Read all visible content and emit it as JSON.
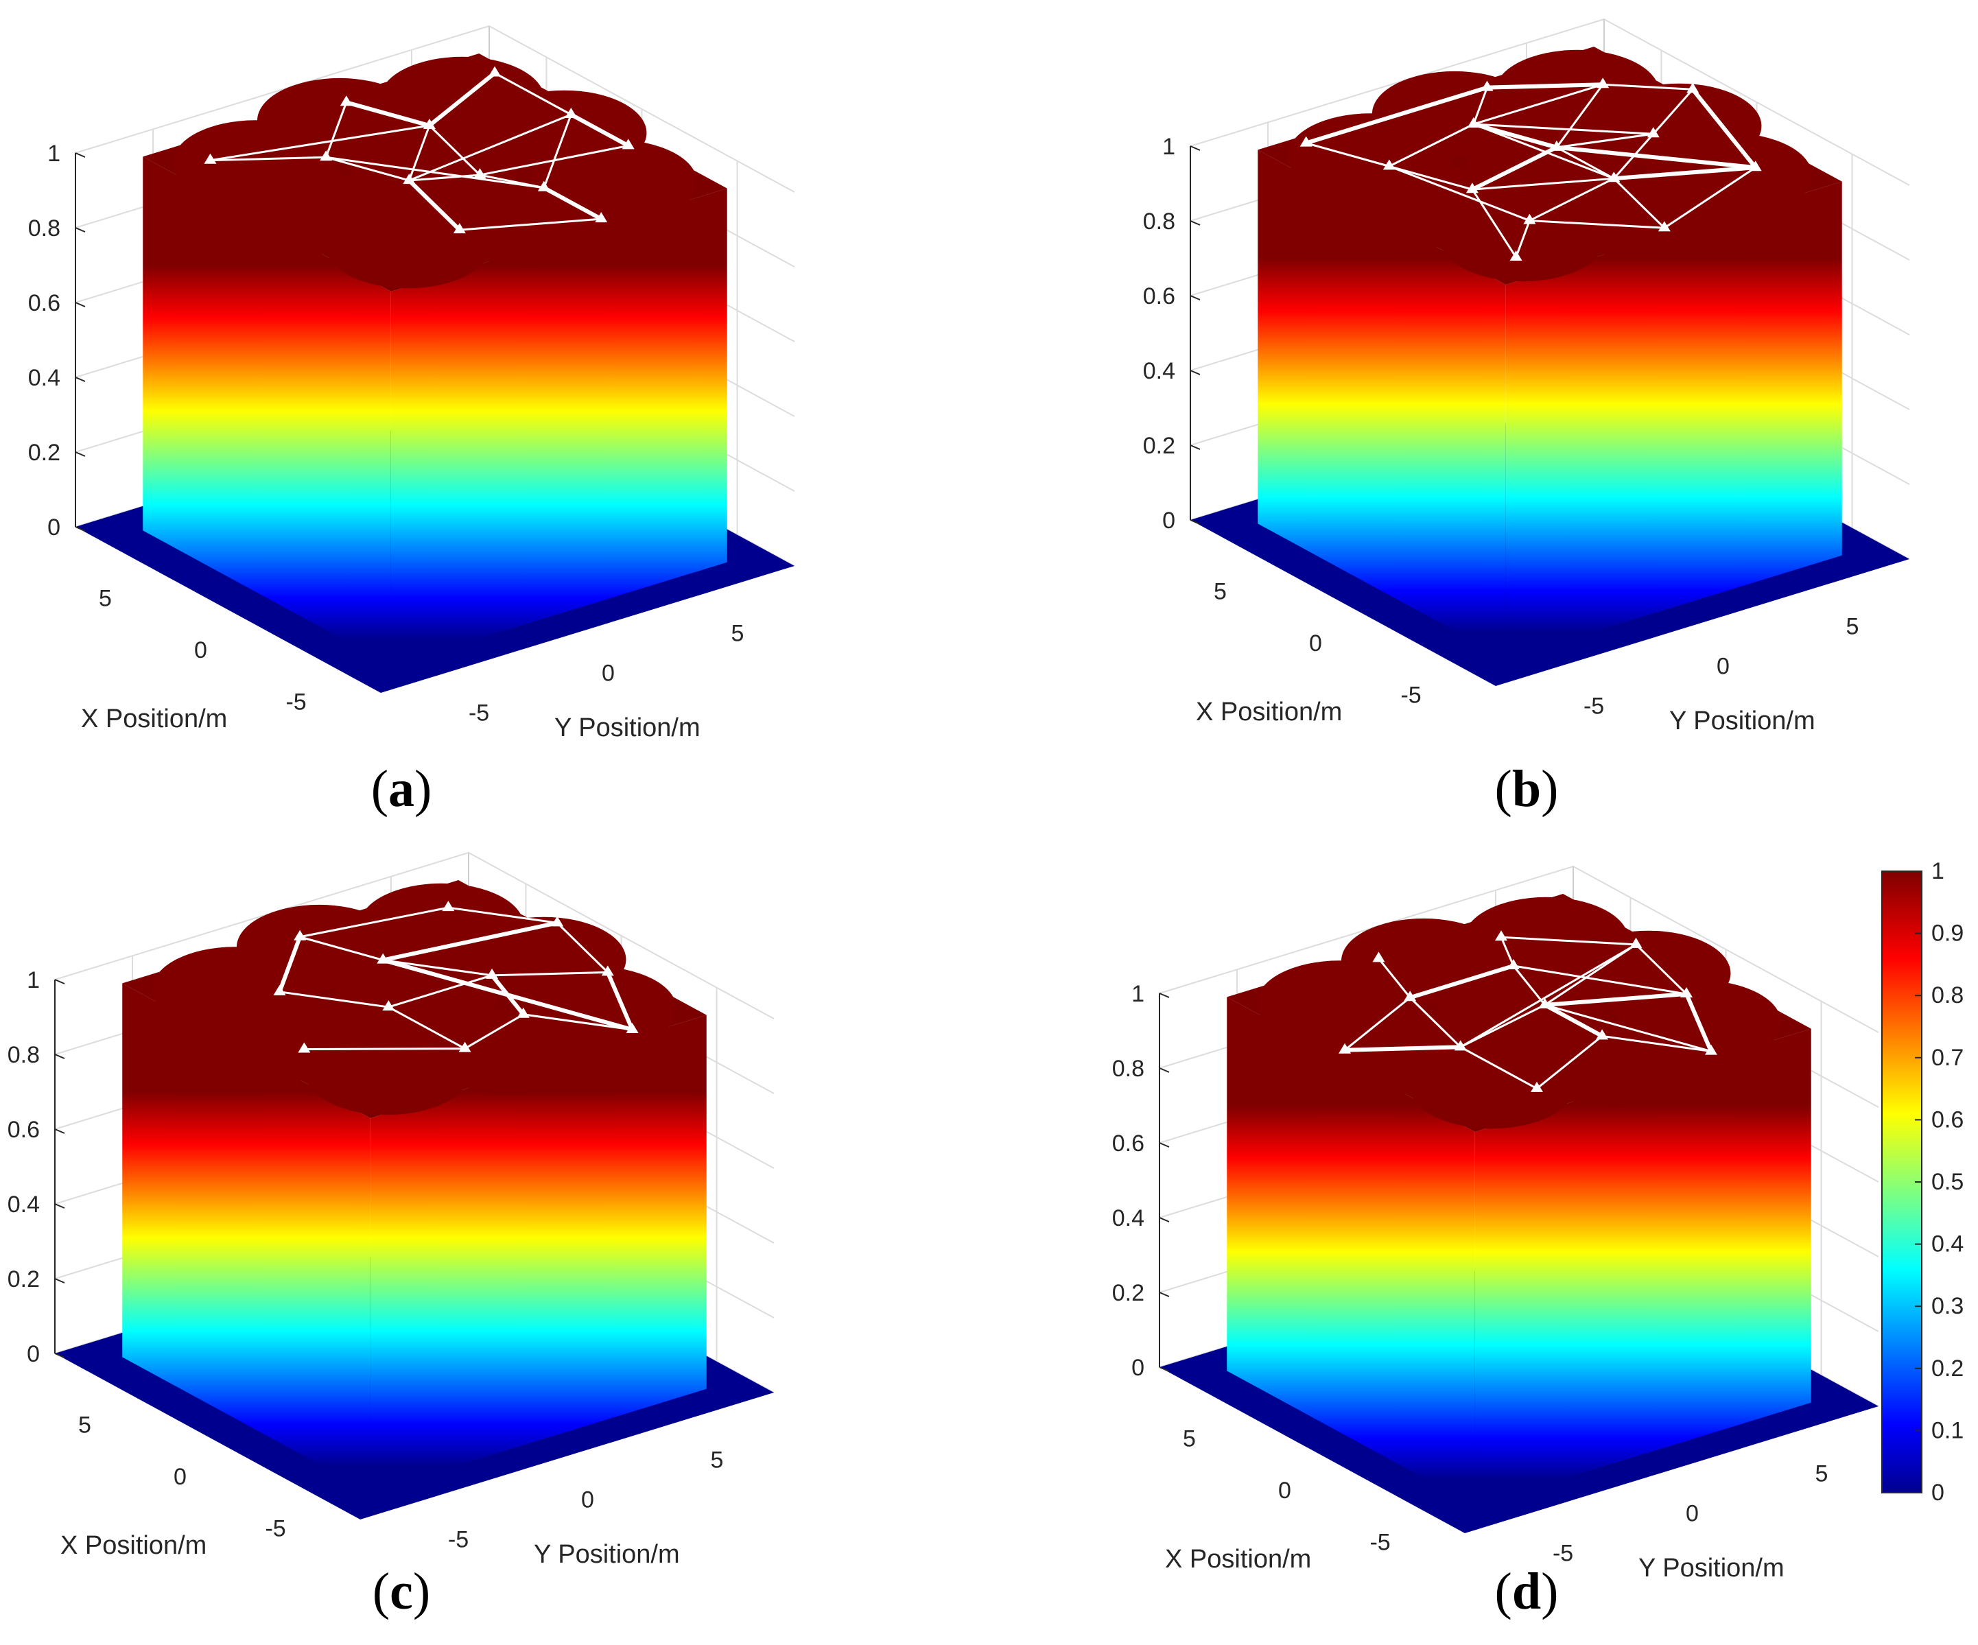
{
  "figure": {
    "colormap": "jet",
    "background": "#ffffff",
    "network_color": "#ffffff",
    "colorbar": {
      "min": 0,
      "max": 1,
      "tick_labels": [
        "0",
        "0.1",
        "0.2",
        "0.3",
        "0.4",
        "0.5",
        "0.6",
        "0.7",
        "0.8",
        "0.9",
        "1"
      ]
    }
  },
  "chart_data": [
    {
      "panel": "a",
      "type": "surface3d",
      "label_open": "(",
      "label_letter": "a",
      "label_close": ")",
      "xlabel": "X Position/m",
      "ylabel": "Y Position/m",
      "xlim": [
        -8,
        8
      ],
      "ylim": [
        -8,
        8
      ],
      "zlim": [
        0,
        1
      ],
      "xticks": [
        "5",
        "0",
        "-5"
      ],
      "yticks": [
        "-5",
        "0",
        "5"
      ],
      "zticks": [
        "0",
        "0.2",
        "0.4",
        "0.6",
        "0.8",
        "1"
      ],
      "grid": true,
      "nodes": [
        [
          -2,
          6
        ],
        [
          1,
          6
        ],
        [
          5,
          6
        ],
        [
          -6,
          2
        ],
        [
          -3,
          2
        ],
        [
          -1,
          1
        ],
        [
          3,
          2
        ],
        [
          6,
          1
        ],
        [
          -4,
          -2
        ],
        [
          0,
          -1
        ],
        [
          3,
          -2
        ],
        [
          5,
          -5
        ]
      ],
      "links": [
        [
          0,
          1
        ],
        [
          1,
          2
        ],
        [
          0,
          5
        ],
        [
          1,
          4
        ],
        [
          3,
          4
        ],
        [
          3,
          8
        ],
        [
          4,
          5
        ],
        [
          5,
          6
        ],
        [
          6,
          7
        ],
        [
          5,
          9
        ],
        [
          6,
          9
        ],
        [
          9,
          10
        ],
        [
          8,
          9
        ],
        [
          7,
          10
        ],
        [
          10,
          11
        ],
        [
          6,
          11
        ],
        [
          2,
          6
        ],
        [
          1,
          9
        ],
        [
          4,
          10
        ]
      ]
    },
    {
      "panel": "b",
      "type": "surface3d",
      "label_open": "(",
      "label_letter": "b",
      "label_close": ")",
      "xlabel": "X Position/m",
      "ylabel": "Y Position/m",
      "xlim": [
        -8,
        8
      ],
      "ylim": [
        -8,
        8
      ],
      "zlim": [
        0,
        1
      ],
      "xticks": [
        "5",
        "0",
        "-5"
      ],
      "yticks": [
        "-5",
        "0",
        "5"
      ],
      "zticks": [
        "0",
        "0.2",
        "0.4",
        "0.6",
        "0.8",
        "1"
      ],
      "grid": true,
      "nodes": [
        [
          2,
          7
        ],
        [
          -4,
          5
        ],
        [
          0,
          4
        ],
        [
          4,
          5
        ],
        [
          6,
          2
        ],
        [
          -6,
          0
        ],
        [
          -2,
          1
        ],
        [
          1,
          1
        ],
        [
          4,
          0
        ],
        [
          -3,
          -3
        ],
        [
          0,
          -3
        ],
        [
          3,
          -4
        ],
        [
          6,
          -5
        ],
        [
          -5,
          -5
        ]
      ],
      "links": [
        [
          0,
          1
        ],
        [
          0,
          2
        ],
        [
          0,
          3
        ],
        [
          1,
          5
        ],
        [
          1,
          6
        ],
        [
          2,
          6
        ],
        [
          2,
          7
        ],
        [
          3,
          7
        ],
        [
          3,
          4
        ],
        [
          4,
          8
        ],
        [
          5,
          6
        ],
        [
          6,
          7
        ],
        [
          7,
          8
        ],
        [
          5,
          9
        ],
        [
          6,
          9
        ],
        [
          6,
          10
        ],
        [
          7,
          10
        ],
        [
          8,
          11
        ],
        [
          10,
          11
        ],
        [
          11,
          12
        ],
        [
          4,
          12
        ],
        [
          9,
          13
        ],
        [
          13,
          10
        ],
        [
          2,
          8
        ],
        [
          1,
          7
        ],
        [
          3,
          8
        ],
        [
          9,
          11
        ],
        [
          6,
          8
        ]
      ]
    },
    {
      "panel": "c",
      "type": "surface3d",
      "label_open": "(",
      "label_letter": "c",
      "label_close": ")",
      "xlabel": "X Position/m",
      "ylabel": "Y Position/m",
      "xlim": [
        -8,
        8
      ],
      "ylim": [
        -8,
        8
      ],
      "zlim": [
        0,
        1
      ],
      "xticks": [
        "5",
        "0",
        "-5"
      ],
      "yticks": [
        "-5",
        "0",
        "5"
      ],
      "zticks": [
        "0",
        "0.2",
        "0.4",
        "0.6",
        "0.8",
        "1"
      ],
      "grid": true,
      "nodes": [
        [
          -6,
          4
        ],
        [
          -2,
          6
        ],
        [
          2,
          7
        ],
        [
          5,
          5
        ],
        [
          -3,
          2
        ],
        [
          0,
          3
        ],
        [
          3,
          1
        ],
        [
          6,
          0
        ],
        [
          -4,
          -1
        ],
        [
          0,
          -1
        ],
        [
          3,
          -3
        ],
        [
          -1,
          -5
        ]
      ],
      "links": [
        [
          0,
          1
        ],
        [
          1,
          2
        ],
        [
          2,
          3
        ],
        [
          0,
          4
        ],
        [
          4,
          5
        ],
        [
          5,
          6
        ],
        [
          6,
          7
        ],
        [
          3,
          7
        ],
        [
          0,
          6
        ],
        [
          4,
          8
        ],
        [
          8,
          9
        ],
        [
          9,
          10
        ],
        [
          7,
          10
        ],
        [
          8,
          11
        ],
        [
          1,
          5
        ],
        [
          5,
          9
        ],
        [
          2,
          6
        ]
      ]
    },
    {
      "panel": "d",
      "type": "surface3d",
      "label_open": "(",
      "label_letter": "d",
      "label_close": ")",
      "xlabel": "X Position/m",
      "ylabel": "Y Position/m",
      "xlim": [
        -8,
        8
      ],
      "ylim": [
        -8,
        8
      ],
      "zlim": [
        0,
        1
      ],
      "xticks": [
        "5",
        "0",
        "-5"
      ],
      "yticks": [
        "-5",
        "0",
        "5"
      ],
      "zticks": [
        "0",
        "0.2",
        "0.4",
        "0.6",
        "0.8",
        "1"
      ],
      "grid": true,
      "nodes": [
        [
          -6,
          3
        ],
        [
          -2,
          5
        ],
        [
          2,
          6
        ],
        [
          5,
          3
        ],
        [
          -3,
          1
        ],
        [
          0,
          1
        ],
        [
          3,
          2
        ],
        [
          6,
          -1
        ],
        [
          -5,
          -3
        ],
        [
          -1,
          -3
        ],
        [
          3,
          -2
        ],
        [
          1,
          -6
        ]
      ],
      "links": [
        [
          0,
          1
        ],
        [
          1,
          2
        ],
        [
          2,
          3
        ],
        [
          0,
          4
        ],
        [
          4,
          5
        ],
        [
          5,
          6
        ],
        [
          3,
          6
        ],
        [
          0,
          5
        ],
        [
          1,
          5
        ],
        [
          2,
          5
        ],
        [
          4,
          8
        ],
        [
          5,
          9
        ],
        [
          6,
          10
        ],
        [
          7,
          10
        ],
        [
          8,
          9
        ],
        [
          9,
          10
        ],
        [
          9,
          11
        ],
        [
          10,
          11
        ],
        [
          2,
          9
        ],
        [
          1,
          6
        ]
      ]
    }
  ]
}
